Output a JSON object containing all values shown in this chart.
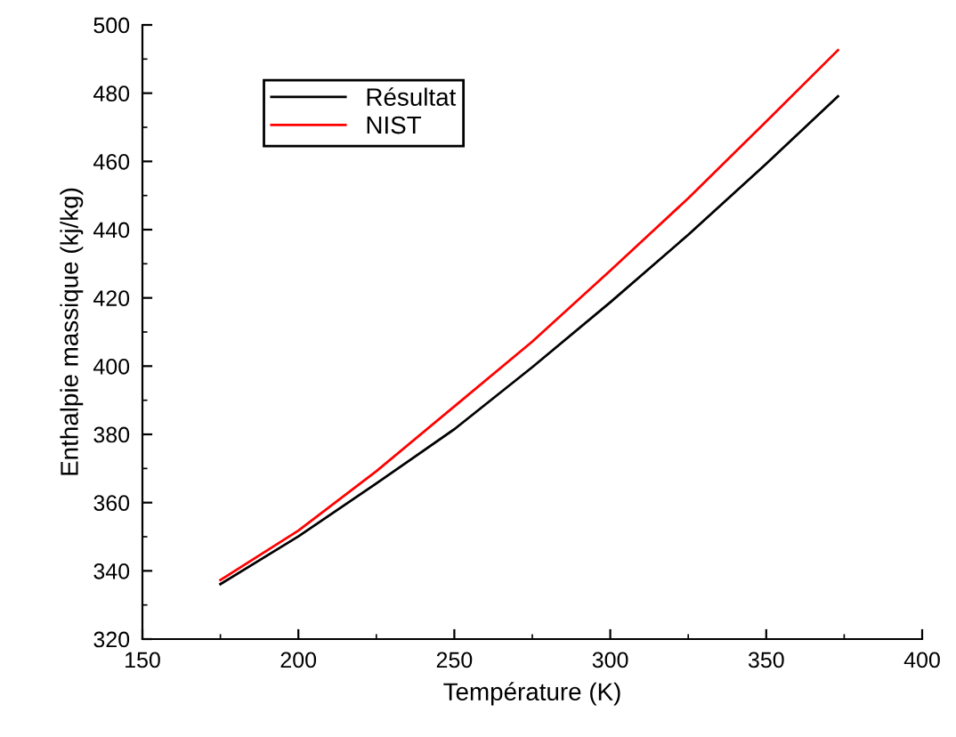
{
  "chart_data": {
    "type": "line",
    "xlabel": "Température (K)",
    "ylabel": "Enthalpie massique (kj/kg)",
    "xlim": [
      150,
      400
    ],
    "xticks": [
      150,
      200,
      250,
      300,
      350,
      400
    ],
    "ylim": [
      320,
      500
    ],
    "yticks": [
      320,
      340,
      360,
      380,
      400,
      420,
      440,
      460,
      480,
      500
    ],
    "grid": false,
    "legend": "top left",
    "marker": "none",
    "line_style": "solid",
    "series": [
      {
        "name": "Résultat",
        "color": "#000000",
        "x": [
          175,
          200,
          225,
          250,
          275,
          300,
          325,
          350,
          373
        ],
        "values": [
          336.1,
          350.1,
          365.6,
          381.5,
          399.7,
          418.7,
          438.5,
          459.3,
          479.1
        ]
      },
      {
        "name": "NIST",
        "color": "#ff0000",
        "x": [
          175,
          200,
          225,
          250,
          275,
          300,
          325,
          350,
          373
        ],
        "values": [
          337.3,
          351.8,
          369.2,
          388.2,
          407.2,
          428.0,
          449.2,
          471.7,
          492.6
        ]
      }
    ]
  }
}
